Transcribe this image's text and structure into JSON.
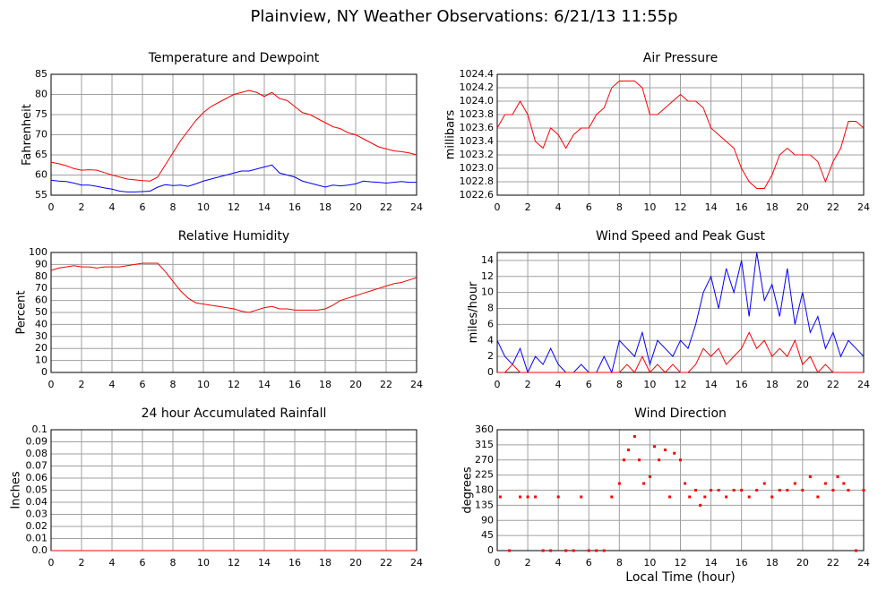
{
  "title": "Plainview, NY Weather Observations: 6/21/13 11:55p",
  "chart_data": [
    {
      "type": "line",
      "title": "Temperature and Dewpoint",
      "ylabel": "Fahrenheit",
      "x": [
        0,
        0.5,
        1,
        1.5,
        2,
        2.5,
        3,
        3.5,
        4,
        4.5,
        5,
        5.5,
        6,
        6.5,
        7,
        7.5,
        8,
        8.5,
        9,
        9.5,
        10,
        10.5,
        11,
        11.5,
        12,
        12.5,
        13,
        13.5,
        14,
        14.5,
        15,
        15.5,
        16,
        16.5,
        17,
        17.5,
        18,
        18.5,
        19,
        19.5,
        20,
        20.5,
        21,
        21.5,
        22,
        22.5,
        23,
        23.5,
        24
      ],
      "series": [
        {
          "color": "#ff0000",
          "values": [
            63.2,
            62.8,
            62.3,
            61.6,
            61.2,
            61.3,
            61.2,
            60.6,
            60.0,
            59.5,
            59.0,
            58.8,
            58.6,
            58.5,
            59.5,
            62.5,
            65.5,
            68.5,
            71,
            73.5,
            75.5,
            77,
            78,
            79,
            80,
            80.5,
            81,
            80.5,
            79.5,
            80.5,
            79,
            78.5,
            77,
            75.5,
            75,
            74,
            73,
            72,
            71.5,
            70.5,
            70,
            69,
            68,
            67,
            66.5,
            66,
            65.8,
            65.5,
            65
          ]
        },
        {
          "color": "#0000ff",
          "values": [
            58.7,
            58.5,
            58.4,
            58,
            57.5,
            57.5,
            57.2,
            56.8,
            56.5,
            56,
            55.8,
            55.8,
            55.9,
            56,
            57,
            57.6,
            57.4,
            57.5,
            57.2,
            57.8,
            58.5,
            59,
            59.5,
            60,
            60.5,
            61,
            61,
            61.5,
            62,
            62.5,
            60.5,
            60,
            59.5,
            58.5,
            58,
            57.5,
            57,
            57.5,
            57.3,
            57.5,
            57.8,
            58.5,
            58.3,
            58.2,
            58,
            58.2,
            58.4,
            58.2,
            58.2
          ]
        }
      ],
      "xlim": [
        0,
        24
      ],
      "xticks": [
        0,
        2,
        4,
        6,
        8,
        10,
        12,
        14,
        16,
        18,
        20,
        22,
        24
      ],
      "ylim": [
        55,
        85
      ],
      "yticks": [
        55,
        60,
        65,
        70,
        75,
        80,
        85
      ],
      "grid": true
    },
    {
      "type": "line",
      "title": "Air Pressure",
      "ylabel": "millibars",
      "x": [
        0,
        0.5,
        1,
        1.5,
        2,
        2.5,
        3,
        3.5,
        4,
        4.5,
        5,
        5.5,
        6,
        6.5,
        7,
        7.5,
        8,
        8.5,
        9,
        9.5,
        10,
        10.5,
        11,
        11.5,
        12,
        12.5,
        13,
        13.5,
        14,
        14.5,
        15,
        15.5,
        16,
        16.5,
        17,
        17.5,
        18,
        18.5,
        19,
        19.5,
        20,
        20.5,
        21,
        21.5,
        22,
        22.5,
        23,
        23.5,
        24
      ],
      "series": [
        {
          "color": "#ff0000",
          "values": [
            1023.6,
            1023.8,
            1023.8,
            1024.0,
            1023.8,
            1023.4,
            1023.3,
            1023.6,
            1023.5,
            1023.3,
            1023.5,
            1023.6,
            1023.6,
            1023.8,
            1023.9,
            1024.2,
            1024.3,
            1024.3,
            1024.3,
            1024.2,
            1023.8,
            1023.8,
            1023.9,
            1024.0,
            1024.1,
            1024.0,
            1024.0,
            1023.9,
            1023.6,
            1023.5,
            1023.4,
            1023.3,
            1023.0,
            1022.8,
            1022.7,
            1022.7,
            1022.9,
            1023.2,
            1023.3,
            1023.2,
            1023.2,
            1023.2,
            1023.1,
            1022.8,
            1023.1,
            1023.3,
            1023.7,
            1023.7,
            1023.6
          ]
        }
      ],
      "xlim": [
        0,
        24
      ],
      "xticks": [
        0,
        2,
        4,
        6,
        8,
        10,
        12,
        14,
        16,
        18,
        20,
        22,
        24
      ],
      "ylim": [
        1022.6,
        1024.4
      ],
      "yticks": [
        1022.6,
        1022.8,
        {
          "value": 1023,
          "label": "1023.0"
        },
        1023.2,
        1023.4,
        1023.6,
        1023.8,
        {
          "value": 1024,
          "label": "1024.0"
        },
        1024.2,
        1024.4
      ],
      "grid": true
    },
    {
      "type": "line",
      "title": "Relative Humidity",
      "ylabel": "Percent",
      "x": [
        0,
        0.5,
        1,
        1.5,
        2,
        2.5,
        3,
        3.5,
        4,
        4.5,
        5,
        5.5,
        6,
        6.5,
        7,
        7.5,
        8,
        8.5,
        9,
        9.5,
        10,
        10.5,
        11,
        11.5,
        12,
        12.5,
        13,
        13.5,
        14,
        14.5,
        15,
        15.5,
        16,
        16.5,
        17,
        17.5,
        18,
        18.5,
        19,
        19.5,
        20,
        20.5,
        21,
        21.5,
        22,
        22.5,
        23,
        23.5,
        24
      ],
      "series": [
        {
          "color": "#ff0000",
          "values": [
            85,
            87,
            88,
            89,
            88,
            88,
            87,
            88,
            88,
            88,
            89,
            90,
            91,
            91,
            91,
            84,
            76,
            68,
            62,
            58,
            57,
            56,
            55,
            54,
            53,
            51,
            50,
            52,
            54,
            55,
            53,
            53,
            52,
            52,
            52,
            52,
            53,
            56,
            60,
            62,
            64,
            66,
            68,
            70,
            72,
            74,
            75,
            77,
            79
          ]
        }
      ],
      "xlim": [
        0,
        24
      ],
      "xticks": [
        0,
        2,
        4,
        6,
        8,
        10,
        12,
        14,
        16,
        18,
        20,
        22,
        24
      ],
      "ylim": [
        0,
        100
      ],
      "yticks": [
        0,
        10,
        20,
        30,
        40,
        50,
        60,
        70,
        80,
        90,
        100
      ],
      "grid": true
    },
    {
      "type": "line",
      "title": "Wind Speed and Peak Gust",
      "ylabel": "miles/hour",
      "x": [
        0,
        0.5,
        1,
        1.5,
        2,
        2.5,
        3,
        3.5,
        4,
        4.5,
        5,
        5.5,
        6,
        6.5,
        7,
        7.5,
        8,
        8.5,
        9,
        9.5,
        10,
        10.5,
        11,
        11.5,
        12,
        12.5,
        13,
        13.5,
        14,
        14.5,
        15,
        15.5,
        16,
        16.5,
        17,
        17.5,
        18,
        18.5,
        19,
        19.5,
        20,
        20.5,
        21,
        21.5,
        22,
        22.5,
        23,
        23.5,
        24
      ],
      "series": [
        {
          "color": "#0000ff",
          "values": [
            4,
            2,
            1,
            3,
            0,
            2,
            1,
            3,
            1,
            0,
            0,
            1,
            0,
            0,
            2,
            0,
            4,
            3,
            2,
            5,
            1,
            4,
            3,
            2,
            4,
            3,
            6,
            10,
            12,
            8,
            13,
            10,
            14,
            7,
            15,
            9,
            11,
            7,
            13,
            6,
            10,
            5,
            7,
            3,
            5,
            2,
            4,
            3,
            2
          ]
        },
        {
          "color": "#ff0000",
          "values": [
            0,
            0,
            1,
            0,
            0,
            0,
            0,
            0,
            0,
            0,
            0,
            0,
            0,
            0,
            0,
            0,
            0,
            1,
            0,
            2,
            0,
            1,
            0,
            1,
            0,
            0,
            1,
            3,
            2,
            3,
            1,
            2,
            3,
            5,
            3,
            4,
            2,
            3,
            2,
            4,
            1,
            2,
            0,
            1,
            0,
            0,
            0,
            0,
            0
          ]
        }
      ],
      "xlim": [
        0,
        24
      ],
      "xticks": [
        0,
        2,
        4,
        6,
        8,
        10,
        12,
        14,
        16,
        18,
        20,
        22,
        24
      ],
      "ylim": [
        0,
        15
      ],
      "yticks": [
        0,
        2,
        4,
        6,
        8,
        10,
        12,
        14
      ],
      "grid": true
    },
    {
      "type": "line",
      "title": "24 hour Accumulated Rainfall",
      "ylabel": "Inches",
      "x": [
        0,
        24
      ],
      "series": [
        {
          "color": "#ff0000",
          "values": [
            0,
            0
          ]
        }
      ],
      "xlim": [
        0,
        24
      ],
      "xticks": [
        0,
        2,
        4,
        6,
        8,
        10,
        12,
        14,
        16,
        18,
        20,
        22,
        24
      ],
      "ylim": [
        0,
        0.1
      ],
      "yticks": [
        {
          "value": 0,
          "label": "0.0"
        },
        0.01,
        0.02,
        0.03,
        0.04,
        0.05,
        0.06,
        0.07,
        0.08,
        0.09,
        0.1
      ],
      "grid": true
    },
    {
      "type": "scatter",
      "title": "Wind Direction",
      "ylabel": "degrees",
      "xlabel": "Local Time (hour)",
      "x": [
        0.2,
        0.8,
        1.5,
        2,
        2.5,
        3,
        3.5,
        4,
        4.5,
        5,
        5.5,
        6,
        6.5,
        7,
        7.5,
        8,
        8.3,
        8.6,
        9,
        9.3,
        9.6,
        10,
        10.3,
        10.6,
        11,
        11.3,
        11.6,
        12,
        12.3,
        12.6,
        13,
        13.3,
        13.6,
        14,
        14.5,
        15,
        15.5,
        16,
        16.5,
        17,
        17.5,
        18,
        18.5,
        19,
        19.5,
        20,
        20.5,
        21,
        21.5,
        22,
        22.3,
        22.7,
        23,
        23.5,
        24
      ],
      "color": "#ff0000",
      "values": [
        160,
        0,
        160,
        160,
        160,
        0,
        0,
        160,
        0,
        0,
        160,
        0,
        0,
        0,
        160,
        200,
        270,
        300,
        340,
        270,
        200,
        220,
        310,
        270,
        300,
        160,
        290,
        270,
        200,
        160,
        180,
        135,
        160,
        180,
        180,
        160,
        180,
        180,
        160,
        180,
        200,
        160,
        180,
        180,
        200,
        180,
        220,
        160,
        200,
        180,
        220,
        200,
        180,
        0,
        180
      ],
      "xlim": [
        0,
        24
      ],
      "xticks": [
        0,
        2,
        4,
        6,
        8,
        10,
        12,
        14,
        16,
        18,
        20,
        22,
        24
      ],
      "ylim": [
        0,
        360
      ],
      "yticks": [
        0,
        45,
        90,
        135,
        180,
        225,
        270,
        315,
        360
      ],
      "grid": true
    }
  ]
}
